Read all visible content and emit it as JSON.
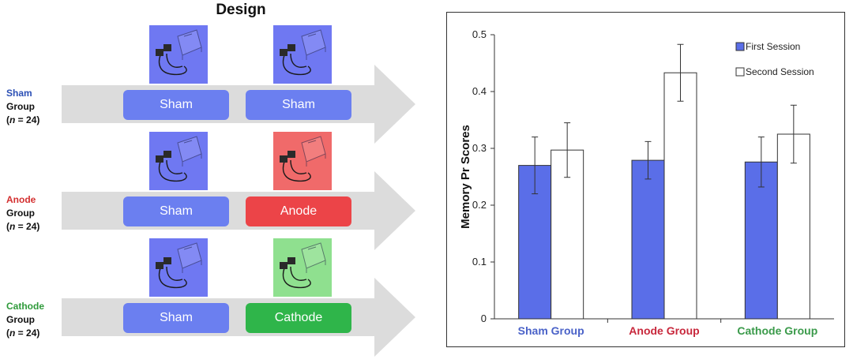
{
  "design": {
    "title": "Design",
    "rows": [
      {
        "group_name": "Sham",
        "group_word": "Group",
        "n_label": "(n = 24)",
        "name_color": "#2b4fb5",
        "session1": {
          "label": "Sham",
          "color": "#6b7ff0"
        },
        "session2": {
          "label": "Sham",
          "color": "#6b7ff0"
        },
        "device1_color": "#6f78f2",
        "device2_color": "#6f78f2"
      },
      {
        "group_name": "Anode",
        "group_word": "Group",
        "n_label": "(n = 24)",
        "name_color": "#d32f2f",
        "session1": {
          "label": "Sham",
          "color": "#6b7ff0"
        },
        "session2": {
          "label": "Anode",
          "color": "#ec4448"
        },
        "device1_color": "#6f78f2",
        "device2_color": "#f06a6a"
      },
      {
        "group_name": "Cathode",
        "group_word": "Group",
        "n_label": "(n = 24)",
        "name_color": "#2e9a3a",
        "session1": {
          "label": "Sham",
          "color": "#6b7ff0"
        },
        "session2": {
          "label": "Cathode",
          "color": "#2fb54a"
        },
        "device1_color": "#6f78f2",
        "device2_color": "#8fe08f"
      }
    ],
    "arrow_color": "#dcdcdc",
    "device_icon": "tdcs-stimulator-icon"
  },
  "chart_data": {
    "type": "bar",
    "ylabel": "Memory Pr Scores",
    "xlabel": "",
    "ylim": [
      0,
      0.5
    ],
    "yticks": [
      "0",
      "0.1",
      "0.2",
      "0.3",
      "0.4",
      "0.5"
    ],
    "ytick_values": [
      0,
      0.1,
      0.2,
      0.3,
      0.4,
      0.5
    ],
    "categories": [
      "Sham Group",
      "Anode Group",
      "Cathode Group"
    ],
    "category_colors": [
      "#4a62c8",
      "#c8283c",
      "#3a9a4a"
    ],
    "series": [
      {
        "name": "First Session",
        "color": "#5a6ee8",
        "values": [
          0.27,
          0.279,
          0.276
        ],
        "err": [
          0.05,
          0.033,
          0.044
        ]
      },
      {
        "name": "Second Session",
        "color": "#ffffff",
        "values": [
          0.297,
          0.433,
          0.325
        ],
        "err": [
          0.048,
          0.05,
          0.051
        ]
      }
    ],
    "legend_position": "top-right",
    "grid": false
  }
}
